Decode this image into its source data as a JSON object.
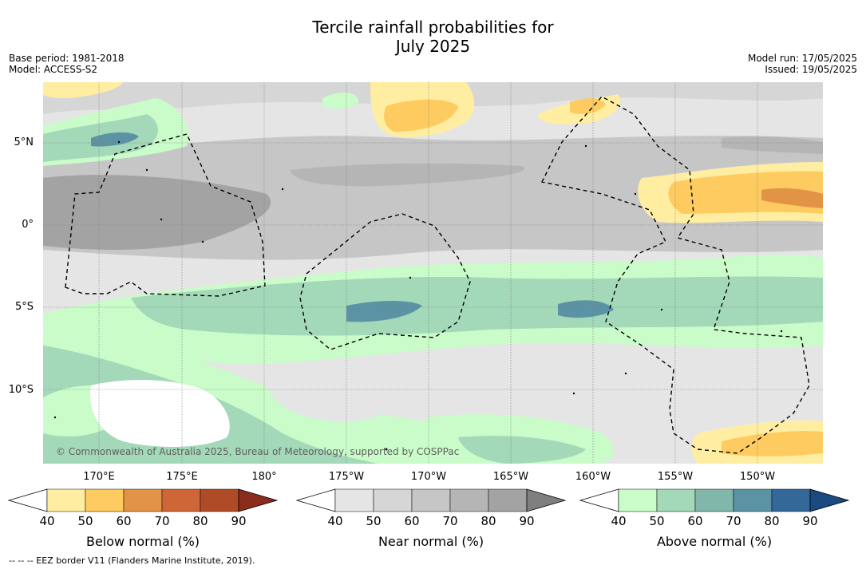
{
  "title_line1": "Tercile rainfall probabilities for",
  "title_line2": "July 2025",
  "base_period": "Base period: 1981-2018",
  "model": "Model: ACCESS-S2",
  "model_run": "Model run: 17/05/2025",
  "issued": "Issued: 19/05/2025",
  "lat_labels": [
    "5°N",
    "0°",
    "5°S",
    "10°S"
  ],
  "lon_labels": [
    "170°E",
    "175°E",
    "180°",
    "175°W",
    "170°W",
    "165°W",
    "160°W",
    "155°W",
    "150°W"
  ],
  "copyright": "© Commonwealth of Australia 2025, Bureau of Meteorology, supported by COSPPac",
  "colorbars": [
    {
      "label": "Below normal (%)",
      "ticks": [
        "40",
        "50",
        "60",
        "70",
        "80",
        "90"
      ],
      "colors": [
        "#ffeea1",
        "#fecb60",
        "#e39346",
        "#cf6638",
        "#b04b27",
        "#8b2d1c"
      ]
    },
    {
      "label": "Near normal (%)",
      "ticks": [
        "40",
        "50",
        "60",
        "70",
        "80",
        "90"
      ],
      "colors": [
        "#e5e5e5",
        "#d6d6d6",
        "#c6c6c6",
        "#b5b5b5",
        "#a3a3a3",
        "#7f7f7f"
      ]
    },
    {
      "label": "Above normal (%)",
      "ticks": [
        "40",
        "50",
        "60",
        "70",
        "80",
        "90"
      ],
      "colors": [
        "#c9fcc9",
        "#a3d8b8",
        "#80b7aa",
        "#5b93a5",
        "#336898",
        "#1a4a7f"
      ]
    }
  ],
  "footer": "-- -- -- EEZ border V11 (Flanders Marine Institute, 2019)."
}
